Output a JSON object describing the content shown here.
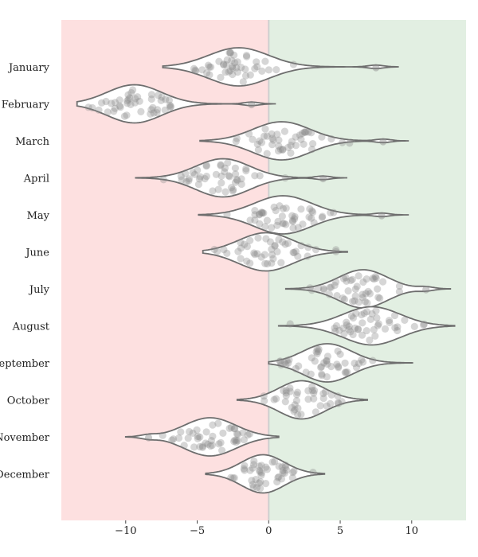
{
  "chart_data": {
    "type": "violin",
    "orientation": "horizontal",
    "title": "",
    "xlabel": "",
    "ylabel": "",
    "xlim": [
      -14.5,
      13.8
    ],
    "xticks": [
      -10,
      -5,
      0,
      5,
      10
    ],
    "xtick_labels": [
      "−10",
      "−5",
      "0",
      "5",
      "10"
    ],
    "grid": false,
    "colors": {
      "negative_region": "#fde0e0",
      "positive_region": "#e2efe2",
      "zero_line": "#cfcfcf",
      "violin_edge": "#6e6e6e",
      "violin_fill": "#ffffff",
      "points": "#8a8a8a"
    },
    "categories": [
      "January",
      "February",
      "March",
      "April",
      "May",
      "June",
      "July",
      "August",
      "September",
      "October",
      "November",
      "December"
    ],
    "series": [
      {
        "category": "January",
        "min": -7.4,
        "max": 9.1,
        "center": -2.1,
        "sd": 2.1,
        "outlier": 7.5,
        "points_n": 45
      },
      {
        "category": "February",
        "min": -13.4,
        "max": 0.5,
        "center": -9.4,
        "sd": 1.9,
        "outlier": -1.2,
        "points_n": 45
      },
      {
        "category": "March",
        "min": -4.8,
        "max": 9.8,
        "center": 0.9,
        "sd": 2.0,
        "outlier": 8.0,
        "points_n": 45
      },
      {
        "category": "April",
        "min": -9.3,
        "max": 5.5,
        "center": -3.2,
        "sd": 1.9,
        "outlier": 3.8,
        "points_n": 45
      },
      {
        "category": "May",
        "min": -4.9,
        "max": 9.8,
        "center": 1.0,
        "sd": 2.0,
        "outlier": 7.9,
        "points_n": 45
      },
      {
        "category": "June",
        "min": -4.6,
        "max": 5.5,
        "center": -0.2,
        "sd": 1.9,
        "outlier": null,
        "points_n": 45
      },
      {
        "category": "July",
        "min": 1.2,
        "max": 12.7,
        "center": 6.6,
        "sd": 1.7,
        "outlier": 11.0,
        "points_n": 45
      },
      {
        "category": "August",
        "min": 0.7,
        "max": 13.0,
        "center": 7.2,
        "sd": 2.0,
        "outlier": null,
        "points_n": 45
      },
      {
        "category": "September",
        "min": 0.0,
        "max": 10.1,
        "center": 4.1,
        "sd": 1.7,
        "outlier": null,
        "points_n": 45
      },
      {
        "category": "October",
        "min": -2.2,
        "max": 6.9,
        "center": 2.3,
        "sd": 1.6,
        "outlier": null,
        "points_n": 40
      },
      {
        "category": "November",
        "min": -10.0,
        "max": 0.7,
        "center": -4.1,
        "sd": 1.8,
        "outlier": -8.4,
        "points_n": 45
      },
      {
        "category": "December",
        "min": -4.4,
        "max": 3.9,
        "center": -0.4,
        "sd": 1.5,
        "outlier": null,
        "points_n": 45
      }
    ]
  }
}
